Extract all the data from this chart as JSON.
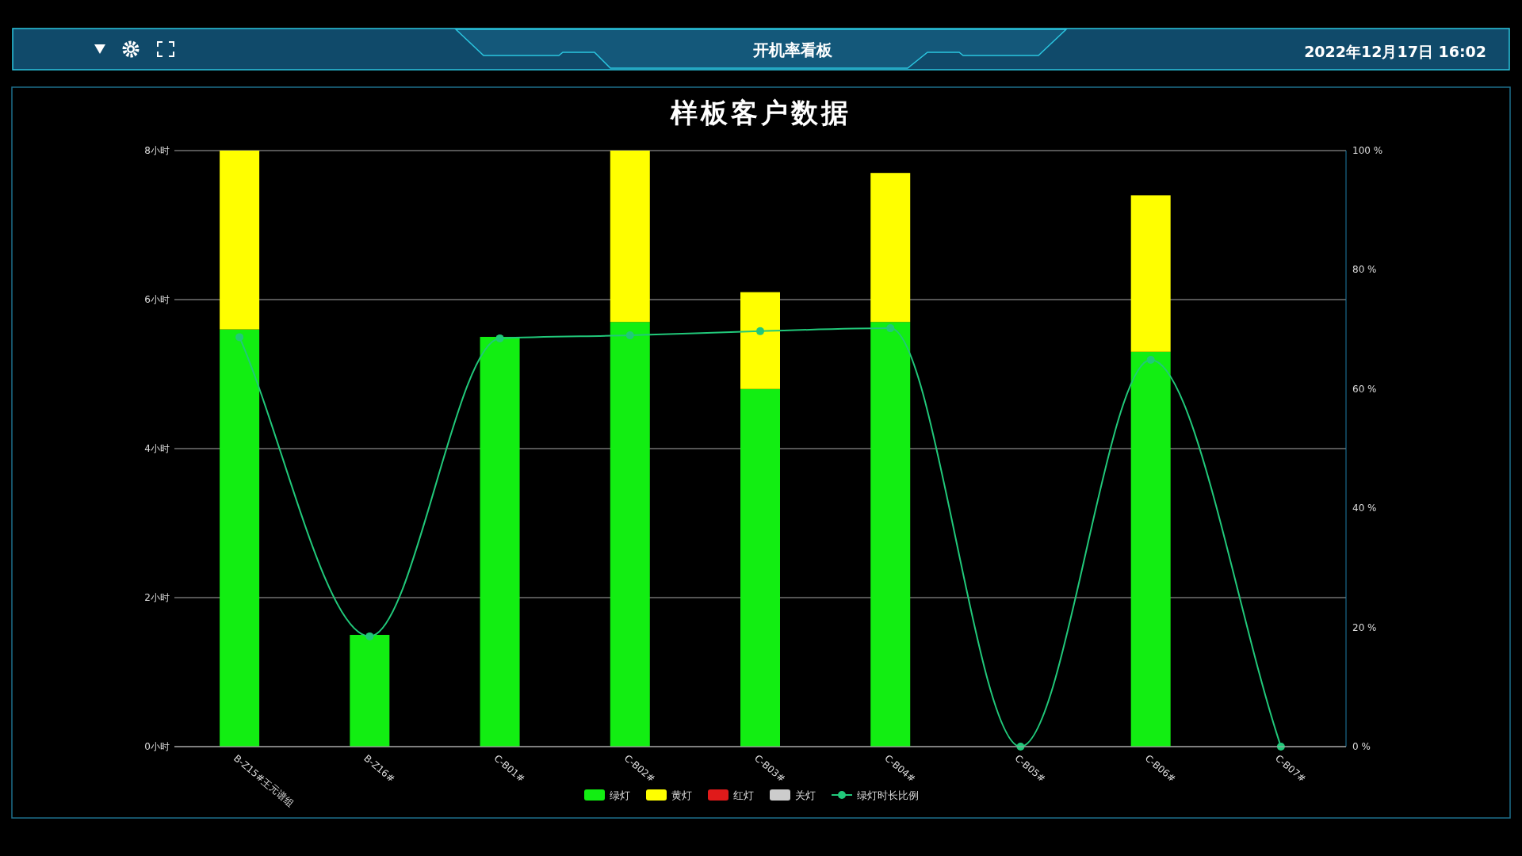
{
  "chart_data": {
    "type": "bar",
    "title": "样板客户数据",
    "stacked": true,
    "grid": "y",
    "legend": "bottom",
    "marker": "circle",
    "annotations": [
      "开机率看板",
      "2022年12月17日 16:02"
    ],
    "categories": [
      "B-Z15#王元谱组",
      "B-Z16#",
      "C-B01#",
      "C-B02#",
      "C-B03#",
      "C-B04#",
      "C-B05#",
      "C-B06#",
      "C-B07#"
    ],
    "series": [
      {
        "name": "绿灯",
        "color": "#12ee12",
        "values": [
          5.6,
          1.5,
          5.5,
          5.7,
          4.8,
          5.7,
          0,
          5.3,
          0
        ]
      },
      {
        "name": "黄灯",
        "color": "#ffff00",
        "values": [
          2.4,
          0,
          0,
          2.3,
          1.3,
          2.0,
          0,
          2.1,
          0
        ]
      },
      {
        "name": "红灯",
        "color": "#e01a1a",
        "values": [
          0,
          0,
          0,
          0,
          0,
          0,
          0,
          0,
          0
        ]
      },
      {
        "name": "关灯",
        "color": "#cccccc",
        "values": [
          0,
          0,
          0,
          0,
          0,
          0,
          0,
          0,
          0
        ]
      },
      {
        "name": "绿灯时长比例",
        "type": "line",
        "axis": "y2",
        "color": "#21c87a",
        "values": [
          68.7,
          18.5,
          68.5,
          69.0,
          69.7,
          70.2,
          0,
          64.9,
          0
        ]
      }
    ],
    "ylim": [
      0,
      8
    ],
    "yticks": [
      {
        "value": 0,
        "label": "0小时"
      },
      {
        "value": 2,
        "label": "2小时"
      },
      {
        "value": 4,
        "label": "4小时"
      },
      {
        "value": 6,
        "label": "6小时"
      },
      {
        "value": 8,
        "label": "8小时"
      }
    ],
    "y2lim": [
      0,
      100
    ],
    "y2ticks": [
      {
        "value": 0,
        "label": "0 %"
      },
      {
        "value": 20,
        "label": "20 %"
      },
      {
        "value": 40,
        "label": "40 %"
      },
      {
        "value": 60,
        "label": "60 %"
      },
      {
        "value": 80,
        "label": "80 %"
      },
      {
        "value": 100,
        "label": "100 %"
      }
    ]
  }
}
